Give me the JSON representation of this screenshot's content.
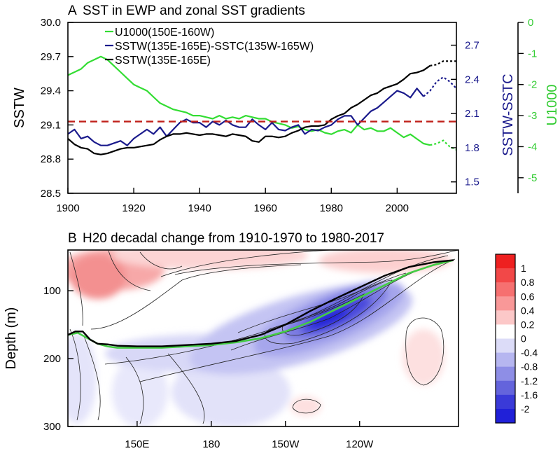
{
  "chart_data": [
    {
      "panel_label": "A",
      "type": "line",
      "title": "SST in EWP and zonal SST gradients",
      "xlim": [
        1900,
        2018
      ],
      "x_ticks": [
        1900,
        1920,
        1940,
        1960,
        1980,
        2000
      ],
      "axes": {
        "left": {
          "label": "SSTW",
          "range": [
            28.5,
            30.0
          ],
          "ticks": [
            "28.5",
            "28.8",
            "29.1",
            "29.4",
            "29.7",
            "30.0"
          ],
          "color": "#000000"
        },
        "right1": {
          "label": "SSTW-SSTC",
          "range": [
            1.4,
            2.9
          ],
          "ticks": [
            "1.5",
            "1.8",
            "2.1",
            "2.4",
            "2.7"
          ],
          "color": "#1a1a8c"
        },
        "right2": {
          "label": "U1000",
          "range": [
            -5.5,
            0
          ],
          "ticks": [
            "0",
            "-1",
            "-2",
            "-3",
            "-4",
            "-5"
          ],
          "color": "#33cc33"
        }
      },
      "reference_line": {
        "value": 29.13,
        "axis": "left",
        "color": "#c0201a",
        "style": "dashed"
      },
      "series": [
        {
          "name": "U1000(150E-160W)",
          "axis": "right2",
          "color": "#33dd33",
          "dashed_from": 2010,
          "x": [
            1900,
            1902,
            1904,
            1906,
            1908,
            1910,
            1912,
            1914,
            1916,
            1918,
            1920,
            1922,
            1924,
            1926,
            1928,
            1930,
            1932,
            1934,
            1936,
            1938,
            1940,
            1942,
            1944,
            1946,
            1948,
            1950,
            1952,
            1954,
            1956,
            1958,
            1960,
            1962,
            1964,
            1966,
            1968,
            1970,
            1972,
            1974,
            1976,
            1978,
            1980,
            1982,
            1984,
            1986,
            1988,
            1990,
            1992,
            1994,
            1996,
            1998,
            2000,
            2002,
            2004,
            2006,
            2008,
            2010,
            2012,
            2014,
            2016,
            2018
          ],
          "values": [
            -1.7,
            -1.6,
            -1.5,
            -1.3,
            -1.2,
            -1.1,
            -1.2,
            -1.4,
            -1.6,
            -1.8,
            -2.0,
            -2.1,
            -2.2,
            -2.4,
            -2.6,
            -2.7,
            -2.8,
            -2.85,
            -2.9,
            -3.0,
            -3.0,
            -3.05,
            -3.1,
            -3.0,
            -3.1,
            -3.05,
            -3.1,
            -3.0,
            -3.05,
            -3.1,
            -3.1,
            -3.2,
            -3.25,
            -3.3,
            -3.4,
            -3.35,
            -3.45,
            -3.5,
            -3.45,
            -3.55,
            -3.6,
            -3.5,
            -3.45,
            -3.55,
            -3.3,
            -3.45,
            -3.4,
            -3.5,
            -3.5,
            -3.4,
            -3.55,
            -3.7,
            -3.6,
            -3.75,
            -3.9,
            -3.95,
            -3.9,
            -3.8,
            -4.0,
            -4.1
          ]
        },
        {
          "name": "SSTW(135E-165E)-SSTC(135W-165W)",
          "axis": "right1",
          "color": "#1a1a8c",
          "dashed_from": 2008,
          "x": [
            1900,
            1902,
            1904,
            1906,
            1908,
            1910,
            1912,
            1914,
            1916,
            1918,
            1920,
            1922,
            1924,
            1926,
            1928,
            1930,
            1932,
            1934,
            1936,
            1938,
            1940,
            1942,
            1944,
            1946,
            1948,
            1950,
            1952,
            1954,
            1956,
            1958,
            1960,
            1962,
            1964,
            1966,
            1968,
            1970,
            1972,
            1974,
            1976,
            1978,
            1980,
            1982,
            1984,
            1986,
            1988,
            1990,
            1992,
            1994,
            1996,
            1998,
            2000,
            2002,
            2004,
            2006,
            2008,
            2010,
            2012,
            2014,
            2016,
            2018
          ],
          "values": [
            1.92,
            1.96,
            1.88,
            1.9,
            1.85,
            1.82,
            1.82,
            1.84,
            1.86,
            1.82,
            1.88,
            1.92,
            1.96,
            1.92,
            1.98,
            1.9,
            1.96,
            2.02,
            2.05,
            2.02,
            2.02,
            1.98,
            2.03,
            2.0,
            2.04,
            2.0,
            1.98,
            1.98,
            2.05,
            2.0,
            1.96,
            2.02,
            1.96,
            1.95,
            1.98,
            2.0,
            1.92,
            1.96,
            1.95,
            1.98,
            2.0,
            2.05,
            2.08,
            2.08,
            2.0,
            2.06,
            2.12,
            2.15,
            2.2,
            2.25,
            2.3,
            2.28,
            2.24,
            2.32,
            2.25,
            2.3,
            2.38,
            2.42,
            2.38,
            2.32
          ]
        },
        {
          "name": "SSTW(135E-165E)",
          "axis": "left",
          "color": "#000000",
          "dashed_from": 2010,
          "x": [
            1900,
            1902,
            1904,
            1906,
            1908,
            1910,
            1912,
            1914,
            1916,
            1918,
            1920,
            1922,
            1924,
            1926,
            1928,
            1930,
            1932,
            1934,
            1936,
            1938,
            1940,
            1942,
            1944,
            1946,
            1948,
            1950,
            1952,
            1954,
            1956,
            1958,
            1960,
            1962,
            1964,
            1966,
            1968,
            1970,
            1972,
            1974,
            1976,
            1978,
            1980,
            1982,
            1984,
            1986,
            1988,
            1990,
            1992,
            1994,
            1996,
            1998,
            2000,
            2002,
            2004,
            2006,
            2008,
            2010,
            2012,
            2014,
            2016,
            2018
          ],
          "values": [
            28.98,
            28.93,
            28.9,
            28.89,
            28.85,
            28.84,
            28.85,
            28.87,
            28.89,
            28.9,
            28.9,
            28.91,
            28.92,
            28.93,
            28.97,
            29.0,
            29.02,
            29.02,
            29.03,
            29.02,
            29.01,
            29.02,
            29.02,
            29.01,
            29.0,
            29.02,
            29.01,
            29.0,
            28.96,
            28.95,
            29.0,
            29.0,
            28.99,
            29.0,
            29.03,
            29.05,
            29.08,
            29.09,
            29.09,
            29.1,
            29.15,
            29.18,
            29.2,
            29.25,
            29.28,
            29.32,
            29.36,
            29.38,
            29.42,
            29.44,
            29.46,
            29.5,
            29.55,
            29.56,
            29.58,
            29.62,
            29.63,
            29.66,
            29.66,
            29.66
          ]
        }
      ]
    },
    {
      "panel_label": "B",
      "type": "heatmap",
      "title": "H20 decadal change from 1910-1970 to 1980-2017",
      "ylabel": "Depth (m)",
      "y_ticks": [
        "100",
        "200",
        "300"
      ],
      "ylim": [
        300,
        40
      ],
      "x_ticks": [
        "150E",
        "180",
        "150W",
        "120W"
      ],
      "xlim_deg_east": [
        122,
        280
      ],
      "colorbar": {
        "levels": [
          "1",
          "0.8",
          "0.6",
          "0.4",
          "0.2",
          "0",
          "-0.4",
          "-0.8",
          "-1.2",
          "-1.6",
          "-2"
        ],
        "colors": [
          "#ee2020",
          "#f24848",
          "#f67070",
          "#f99898",
          "#fcc8c8",
          "#ffffff",
          "#dcdcf8",
          "#b6b6f0",
          "#8e8ee6",
          "#6464dc",
          "#3a3ad8",
          "#2020d8"
        ]
      },
      "isotherm_clim": {
        "color": "#000000",
        "lon": [
          122,
          125,
          128,
          131,
          134,
          138,
          142,
          150,
          160,
          170,
          180,
          190,
          200,
          210,
          220,
          230,
          240,
          250,
          260,
          270,
          278
        ],
        "depth": [
          165,
          160,
          160,
          172,
          178,
          179,
          181,
          182,
          182,
          180,
          178,
          174,
          165,
          150,
          130,
          112,
          95,
          78,
          65,
          58,
          55
        ]
      },
      "isotherm_recent": {
        "color": "#44cc44",
        "lon": [
          122,
          126,
          130,
          134,
          138,
          142,
          150,
          160,
          170,
          180,
          190,
          200,
          210,
          220,
          230,
          240,
          250,
          260,
          270,
          278
        ],
        "depth": [
          165,
          162,
          170,
          178,
          182,
          184,
          184,
          184,
          182,
          180,
          176,
          170,
          160,
          146,
          128,
          110,
          92,
          74,
          62,
          55
        ]
      }
    }
  ]
}
